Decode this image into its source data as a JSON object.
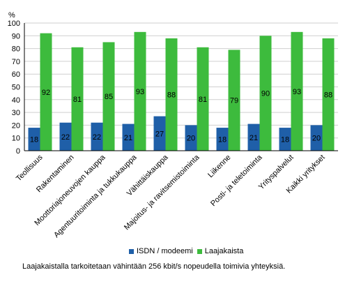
{
  "chart_data": {
    "type": "bar",
    "y_unit": "%",
    "ylim": [
      0,
      100
    ],
    "y_ticks": [
      0,
      10,
      20,
      30,
      40,
      50,
      60,
      70,
      80,
      90,
      100
    ],
    "grid": true,
    "legend_position": "bottom",
    "categories": [
      "Teollisuus",
      "Rakentaminen",
      "Moottoriajoneuvojen kauppa",
      "Agentuuritoiminta ja tukkukauppa",
      "Vähittäiskauppa",
      "Majoitus- ja ravitsemistoiminta",
      "Liikenne",
      "Posti- ja teletoiminta",
      "Yrityspalvelut",
      "Kaikki yritykset"
    ],
    "series": [
      {
        "name": "ISDN / modeemi",
        "color": "#1f5fa8",
        "values": [
          18,
          22,
          22,
          21,
          27,
          20,
          18,
          21,
          18,
          20
        ]
      },
      {
        "name": "Laajakaista",
        "color": "#3dbb3d",
        "values": [
          92,
          81,
          85,
          93,
          88,
          81,
          79,
          90,
          93,
          88
        ]
      }
    ]
  },
  "legend": {
    "isdn": "ISDN / modeemi",
    "broadband": "Laajakaista"
  },
  "note": "Laajakaistalla tarkoitetaan vähintään 256 kbit/s nopeudella toimivia yhteyksiä."
}
